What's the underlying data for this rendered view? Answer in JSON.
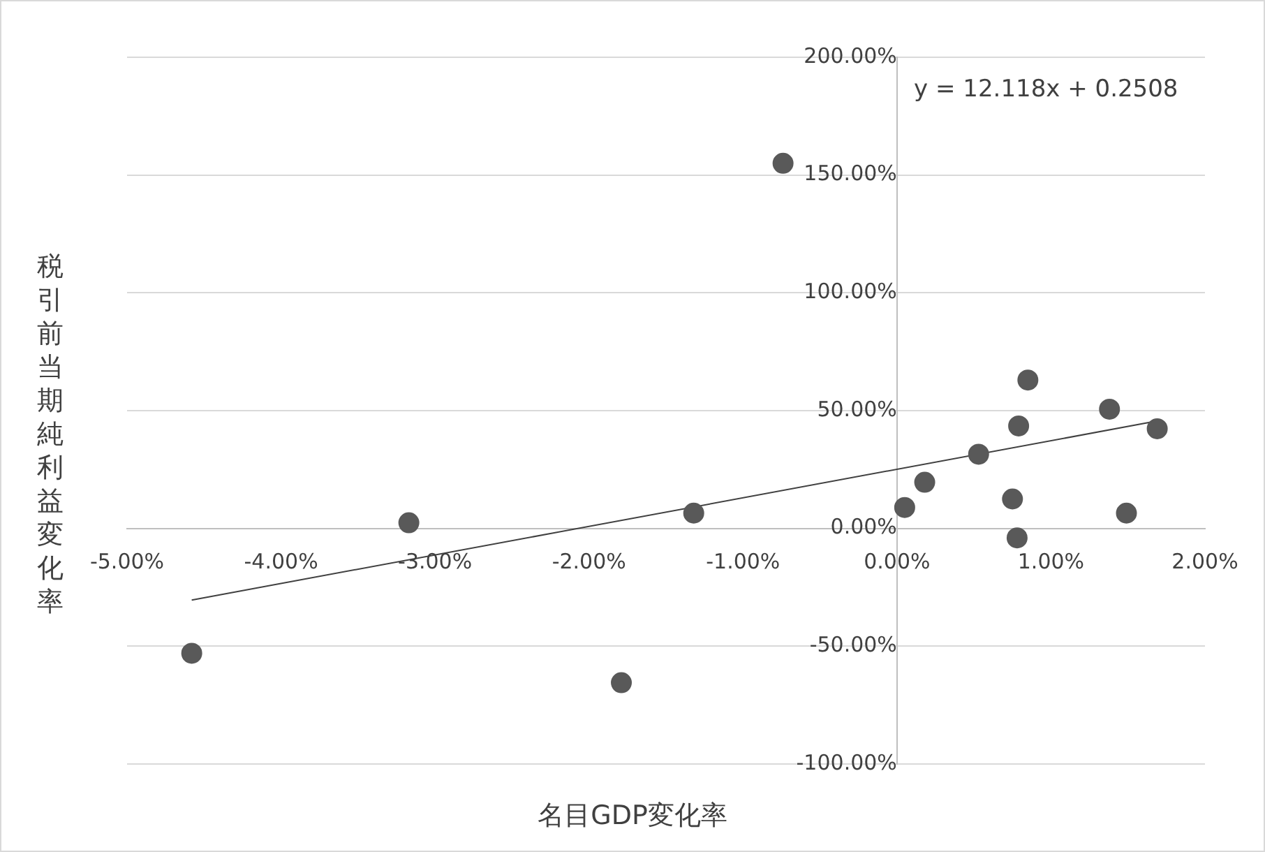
{
  "chart_data": {
    "type": "scatter",
    "xlabel": "名目GDP変化率",
    "ylabel": "税引前当期純利益変化率",
    "annotations": [
      "y = 12.118x + 0.2508"
    ],
    "xlim": [
      -5,
      2
    ],
    "xticks": [
      {
        "value": -5,
        "label": "-5.00%"
      },
      {
        "value": -4,
        "label": "-4.00%"
      },
      {
        "value": -3,
        "label": "-3.00%"
      },
      {
        "value": -2,
        "label": "-2.00%"
      },
      {
        "value": -1,
        "label": "-1.00%"
      },
      {
        "value": 0,
        "label": "0.00%"
      },
      {
        "value": 1,
        "label": "1.00%"
      },
      {
        "value": 2,
        "label": "2.00%"
      }
    ],
    "ylim": [
      -100,
      200
    ],
    "yticks": [
      {
        "value": -100,
        "label": "-100.00%"
      },
      {
        "value": -50,
        "label": "-50.00%"
      },
      {
        "value": 0,
        "label": "0.00%"
      },
      {
        "value": 50,
        "label": "50.00%"
      },
      {
        "value": 100,
        "label": "100.00%"
      },
      {
        "value": 150,
        "label": "150.00%"
      },
      {
        "value": 200,
        "label": "200.00%"
      }
    ],
    "grid": "y",
    "legend": false,
    "series": [
      {
        "marker": "circle",
        "color": "#595959",
        "x": [
          -0.74,
          -4.58,
          -3.17,
          -1.79,
          -1.32,
          0.05,
          0.18,
          0.53,
          0.75,
          0.78,
          0.79,
          0.85,
          1.38,
          1.49,
          1.69
        ],
        "values": [
          155,
          -53,
          2.4,
          -65.5,
          6.5,
          8.9,
          19.6,
          31.5,
          12.5,
          -4,
          43.5,
          63,
          50.6,
          6.5,
          42.3
        ]
      },
      {
        "type": "line",
        "color": "#404040",
        "x": [
          -4.58,
          1.69
        ],
        "values": [
          -30.4,
          45.6
        ]
      }
    ]
  }
}
